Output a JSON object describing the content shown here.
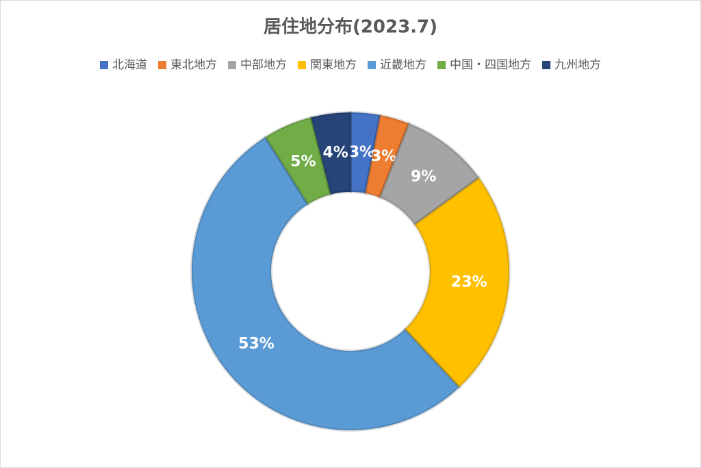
{
  "chart_data": {
    "type": "doughnut",
    "title": "居住地分布(2023.7)",
    "categories": [
      "北海道",
      "東北地方",
      "中部地方",
      "関東地方",
      "近畿地方",
      "中国・四国地方",
      "九州地方"
    ],
    "values": [
      3,
      3,
      9,
      23,
      53,
      5,
      4
    ],
    "value_labels": [
      "3%",
      "3%",
      "9%",
      "23%",
      "53%",
      "5%",
      "4%"
    ],
    "colors": [
      "#4472c4",
      "#ed7d31",
      "#a5a5a5",
      "#ffc000",
      "#5b9bd5",
      "#70ad47",
      "#264478"
    ],
    "legend": "top"
  }
}
